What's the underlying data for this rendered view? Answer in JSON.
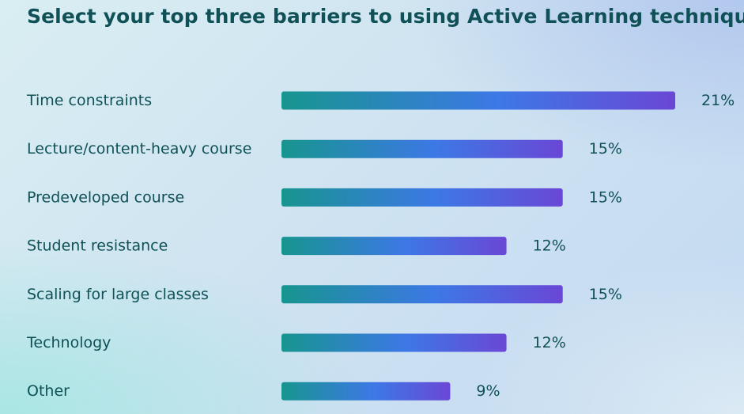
{
  "chart_data": {
    "type": "bar",
    "orientation": "horizontal",
    "title": "Select your top three barriers to using Active Learning techniques.",
    "categories": [
      "Time constraints",
      "Lecture/content-heavy course",
      "Predeveloped course",
      "Student resistance",
      "Scaling for large classes",
      "Technology",
      "Other"
    ],
    "values": [
      21,
      15,
      15,
      12,
      15,
      12,
      9
    ],
    "value_labels": [
      "21%",
      "15%",
      "15%",
      "12%",
      "15%",
      "12%",
      "9%"
    ],
    "unit": "%",
    "xlim": [
      0,
      21
    ],
    "grid": false,
    "legend": "none",
    "colors": {
      "bar_start": "#17958f",
      "bar_mid": "#3d78e6",
      "bar_end": "#6a47d6",
      "text": "#0f5157"
    }
  }
}
